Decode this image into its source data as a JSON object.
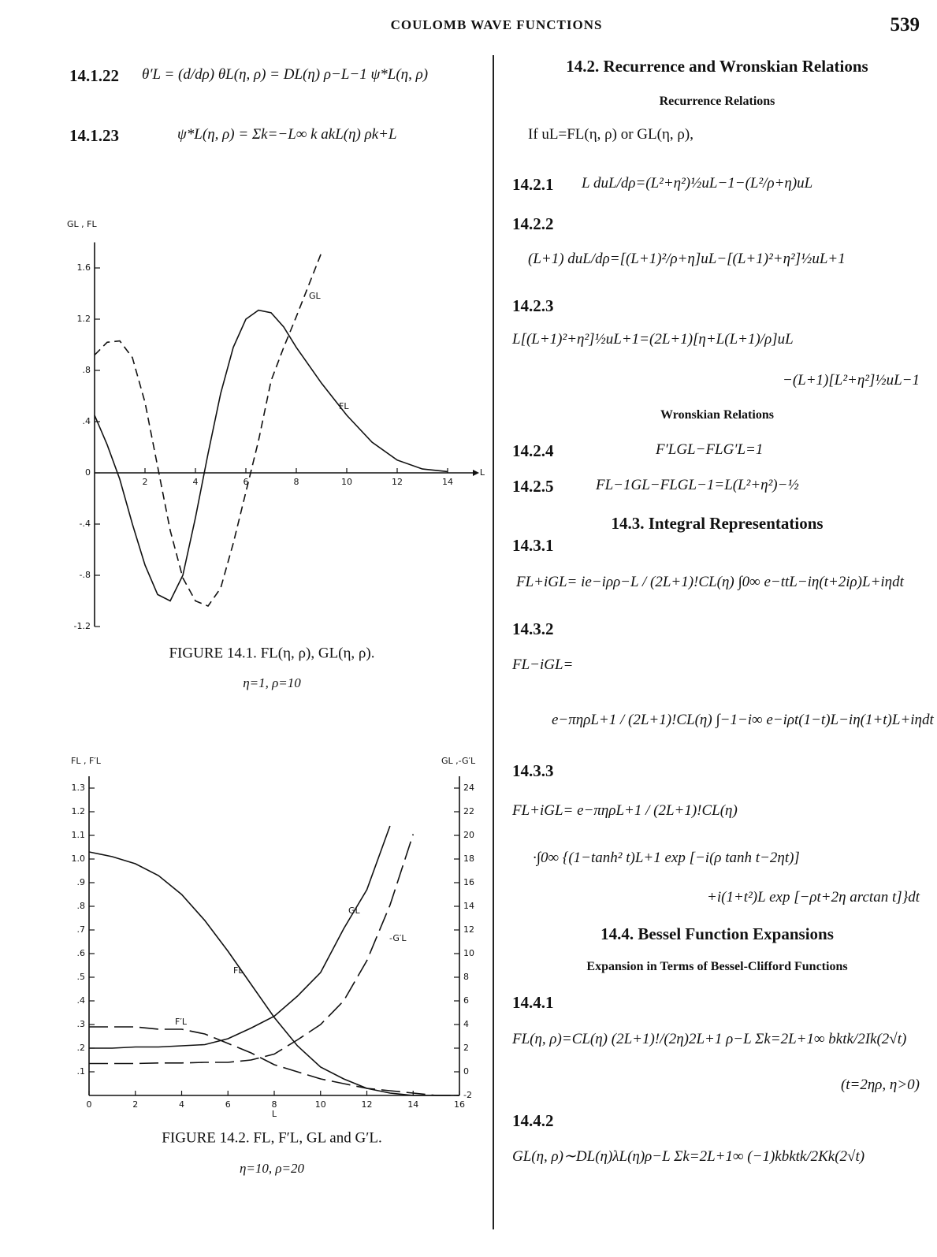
{
  "header": {
    "title": "COULOMB WAVE FUNCTIONS",
    "page": "539"
  },
  "left": {
    "equations": [
      {
        "number": "14.1.22",
        "formula": "θ′L = (d/dρ) θL(η, ρ) = DL(η) ρ−L−1 ψ*L(η, ρ)"
      },
      {
        "number": "14.1.23",
        "formula": "ψ*L(η, ρ) = Σk=−L∞ k akL(η) ρk+L"
      }
    ]
  },
  "chart_data": [
    {
      "type": "line",
      "title": "FIGURE 14.1.   FL(η, ρ), GL(η, ρ).",
      "subtitle": "η=1, ρ=10",
      "y_label": "GL , FL",
      "x_label": "L",
      "x": [
        0,
        0.5,
        1,
        1.5,
        2,
        2.5,
        3,
        3.5,
        4,
        4.5,
        5,
        5.5,
        6,
        6.5,
        7,
        7.5,
        8,
        9,
        10,
        11,
        12,
        13,
        14
      ],
      "series": [
        {
          "name": "GL",
          "color": "#111111",
          "line_style": "dashed",
          "values": [
            0.92,
            1.02,
            1.03,
            0.9,
            0.55,
            0.05,
            -0.45,
            -0.82,
            -1.0,
            -1.04,
            -0.9,
            -0.55,
            -0.15,
            0.25,
            0.72,
            0.98,
            1.22,
            1.72,
            null,
            null,
            null,
            null,
            null
          ]
        },
        {
          "name": "FL",
          "color": "#111111",
          "line_style": "solid",
          "values": [
            0.45,
            0.22,
            -0.05,
            -0.4,
            -0.72,
            -0.95,
            -1.0,
            -0.8,
            -0.35,
            0.15,
            0.62,
            0.98,
            1.2,
            1.27,
            1.25,
            1.14,
            0.98,
            0.7,
            0.45,
            0.24,
            0.1,
            0.03,
            0.01
          ]
        }
      ],
      "xlim": [
        0,
        15
      ],
      "xticks": [
        2,
        4,
        6,
        8,
        10,
        12,
        14
      ],
      "ylim": [
        -1.2,
        1.8
      ],
      "yticks": [
        1.6,
        1.2,
        {
          "value": 0.8,
          "label": ".8"
        },
        {
          "value": 0.4,
          "label": ".4"
        },
        0,
        {
          "value": -0.4,
          "label": "-.4"
        },
        {
          "value": -0.8,
          "label": "-.8"
        },
        -1.2
      ],
      "grid": false
    },
    {
      "type": "line",
      "title": "FIGURE 14.2.   FL, F′L, GL and G′L.",
      "subtitle": "η=10, ρ=20",
      "y_label": "FL , F′L",
      "y2_label": "GL ,-G′L",
      "x_label": "L",
      "x": [
        0,
        1,
        2,
        3,
        4,
        5,
        6,
        7,
        8,
        9,
        10,
        11,
        12,
        13,
        14,
        15,
        16
      ],
      "series": [
        {
          "name": "FL",
          "color": "#111111",
          "line_style": "solid",
          "values": [
            1.03,
            1.01,
            0.98,
            0.93,
            0.85,
            0.74,
            0.61,
            0.47,
            0.33,
            0.21,
            0.12,
            0.07,
            0.03,
            0.01,
            0.0,
            0.0,
            0.0
          ]
        },
        {
          "name": "F′L",
          "color": "#111111",
          "line_style": "long-dashed",
          "values": [
            0.29,
            0.29,
            0.29,
            0.28,
            0.28,
            0.26,
            0.22,
            0.18,
            0.13,
            0.1,
            0.07,
            0.05,
            0.03,
            0.02,
            0.01,
            0.0,
            0.0
          ]
        },
        {
          "name": "GL",
          "color": "#111111",
          "line_style": "solid",
          "axis": "y2",
          "values": [
            2.0,
            2.0,
            2.1,
            2.1,
            2.2,
            2.3,
            2.8,
            3.7,
            4.7,
            6.4,
            8.4,
            12.1,
            15.4,
            20.8,
            null,
            null,
            null
          ]
        },
        {
          "name": "-G′L",
          "color": "#111111",
          "line_style": "long-dashed",
          "axis": "y2",
          "values": [
            0.7,
            0.7,
            0.7,
            0.75,
            0.75,
            0.8,
            0.8,
            1.0,
            1.5,
            2.7,
            4.0,
            6.0,
            9.4,
            14.1,
            20.1,
            null,
            null
          ]
        }
      ],
      "xlim": [
        0,
        16
      ],
      "xticks": [
        0,
        2,
        4,
        6,
        8,
        10,
        12,
        14,
        16
      ],
      "ylim": [
        0,
        1.35
      ],
      "yticks": [
        {
          "value": 0.1,
          "label": ".1"
        },
        {
          "value": 0.2,
          "label": ".2"
        },
        {
          "value": 0.3,
          "label": ".3"
        },
        {
          "value": 0.4,
          "label": ".4"
        },
        {
          "value": 0.5,
          "label": ".5"
        },
        {
          "value": 0.6,
          "label": ".6"
        },
        {
          "value": 0.7,
          "label": ".7"
        },
        {
          "value": 0.8,
          "label": ".8"
        },
        {
          "value": 0.9,
          "label": ".9"
        },
        {
          "value": 1.0,
          "label": "1.0"
        },
        1.1,
        1.2,
        1.3
      ],
      "y2lim": [
        -2,
        25
      ],
      "y2ticks": [
        -2,
        0,
        2,
        4,
        6,
        8,
        10,
        12,
        14,
        16,
        18,
        20,
        22,
        24
      ],
      "grid": false
    }
  ],
  "right": {
    "blocks": [
      {
        "heading": "14.2. Recurrence and Wronskian Relations"
      },
      {
        "subheading": "Recurrence Relations"
      },
      {
        "text": "If uL=FL(η, ρ) or GL(η, ρ),"
      },
      {
        "number": "14.2.1",
        "lines": [
          "L duL/dρ=(L²+η²)½uL−1−(L²/ρ+η)uL"
        ]
      },
      {
        "number": "14.2.2",
        "lines": [
          "(L+1) duL/dρ=[(L+1)²/ρ+η]uL−[(L+1)²+η²]½uL+1"
        ]
      },
      {
        "number": "14.2.3",
        "lines": [
          "L[(L+1)²+η²]½uL+1=(2L+1)[η+L(L+1)/ρ]uL",
          "−(L+1)[L²+η²]½uL−1"
        ]
      },
      {
        "subheading": "Wronskian Relations"
      },
      {
        "number": "14.2.4",
        "lines": [
          "F′LGL−FLG′L=1"
        ]
      },
      {
        "number": "14.2.5",
        "lines": [
          "FL−1GL−FLGL−1=L(L²+η²)−½"
        ]
      },
      {
        "heading": "14.3. Integral Representations"
      },
      {
        "number": "14.3.1",
        "lines": [
          "FL+iGL= ie−iρρ−L / (2L+1)!CL(η) ∫0∞ e−ttL−iη(t+2iρ)L+iηdt"
        ]
      },
      {
        "number": "14.3.2",
        "lines": [
          "FL−iGL=",
          "e−πηρL+1 / (2L+1)!CL(η) ∫−1−i∞ e−iρt(1−t)L−iη(1+t)L+iηdt"
        ]
      },
      {
        "number": "14.3.3",
        "lines": [
          "FL+iGL= e−πηρL+1 / (2L+1)!CL(η)",
          "·∫0∞ {(1−tanh² t)L+1 exp [−i(ρ tanh t−2ηt)]",
          "+i(1+t²)L exp [−ρt+2η arctan t]}dt"
        ]
      },
      {
        "heading": "14.4. Bessel Function Expansions"
      },
      {
        "subheading": "Expansion in Terms of Bessel-Clifford Functions"
      },
      {
        "number": "14.4.1",
        "lines": [
          "FL(η, ρ)=CL(η) (2L+1)!/(2η)2L+1 ρ−L Σk=2L+1∞ bktk/2Ik(2√t)",
          "(t=2ηρ, η>0)"
        ]
      },
      {
        "number": "14.4.2",
        "lines": [
          "GL(η, ρ)∼DL(η)λL(η)ρ−L Σk=2L+1∞ (−1)kbktk/2Kk(2√t)"
        ]
      }
    ]
  }
}
